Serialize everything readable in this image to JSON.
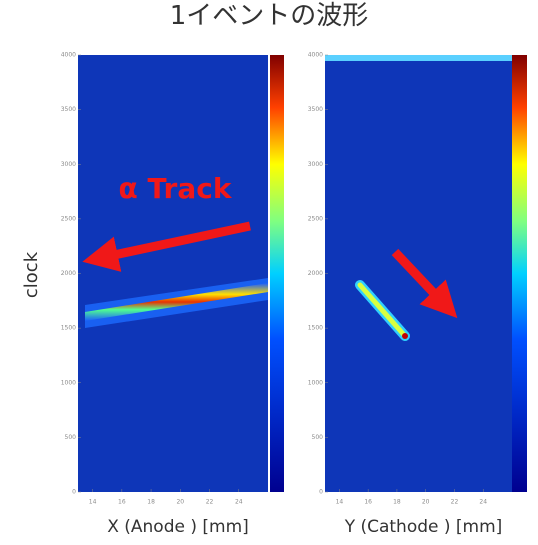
{
  "title": "1イベントの波形",
  "chart_data": [
    {
      "type": "heatmap",
      "ylabel": "clock",
      "xlabel": "X (Anode ) [mm]",
      "annotation": "α Track",
      "xlim": [
        13,
        26
      ],
      "xticks": [
        14,
        16,
        18,
        20,
        22,
        24
      ],
      "ylim": [
        0,
        4000
      ],
      "yticks": [
        0,
        500,
        1000,
        1500,
        2000,
        2500,
        3000,
        3500,
        4000
      ]
    },
    {
      "type": "heatmap",
      "xlabel": "Y (Cathode ) [mm]",
      "xlim": [
        13,
        26
      ],
      "xticks": [
        14,
        16,
        18,
        20,
        22,
        24
      ],
      "ylim": [
        0,
        4000
      ],
      "yticks": [
        0,
        500,
        1000,
        1500,
        2000,
        2500,
        3000,
        3500,
        4000
      ]
    }
  ]
}
